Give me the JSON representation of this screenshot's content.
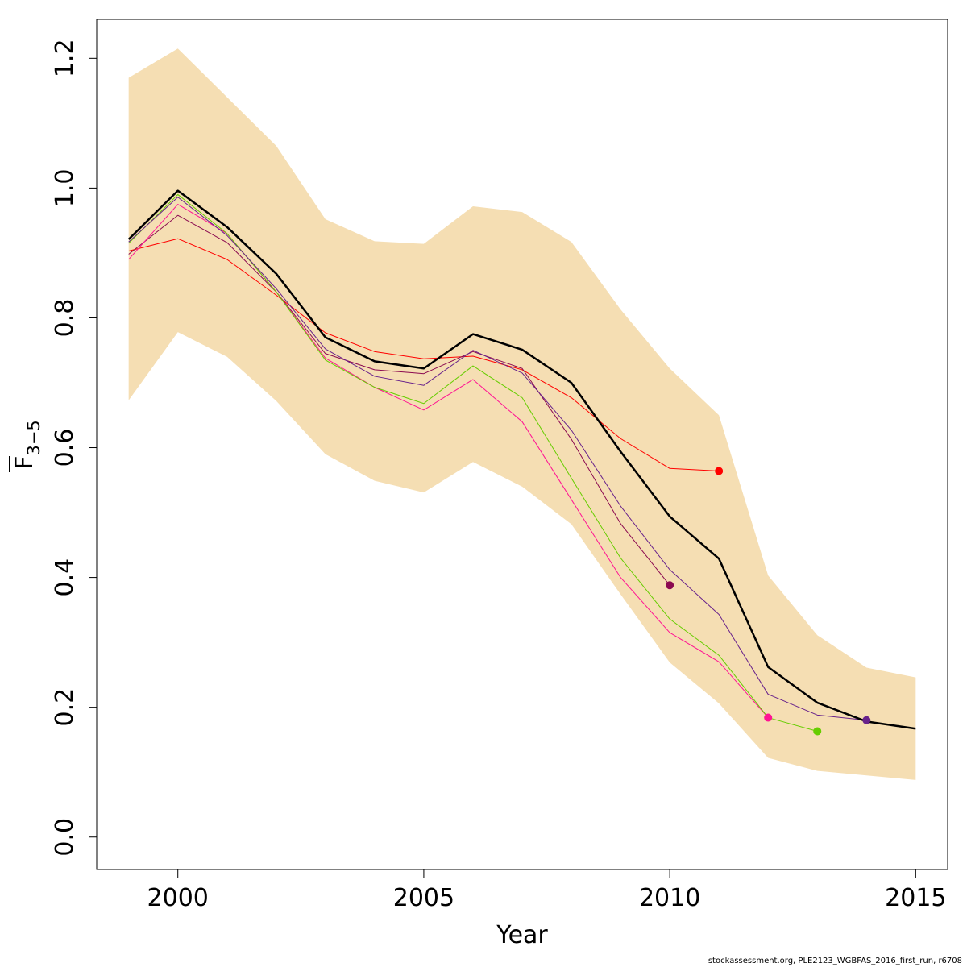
{
  "chart_data": {
    "type": "line",
    "xlabel": "Year",
    "ylabel_main": "F",
    "ylabel_sub": "3−5",
    "xlim": [
      1998.35,
      2015.65
    ],
    "ylim": [
      -0.05,
      1.26
    ],
    "x_ticks": [
      2000,
      2005,
      2010,
      2015
    ],
    "y_ticks": [
      0.0,
      0.2,
      0.4,
      0.6,
      0.8,
      1.0,
      1.2
    ],
    "x_tick_labels": [
      "2000",
      "2005",
      "2010",
      "2015"
    ],
    "y_tick_labels": [
      "0.0",
      "0.2",
      "0.4",
      "0.6",
      "0.8",
      "1.0",
      "1.2"
    ],
    "confidence_band": {
      "color": "#f5deb3",
      "x": [
        1999,
        2000,
        2001,
        2002,
        2003,
        2004,
        2005,
        2006,
        2007,
        2008,
        2009,
        2010,
        2011,
        2012,
        2013,
        2014,
        2015
      ],
      "upper": [
        1.17,
        1.215,
        1.14,
        1.065,
        0.952,
        0.918,
        0.914,
        0.972,
        0.963,
        0.917,
        0.813,
        0.722,
        0.65,
        0.403,
        0.311,
        0.261,
        0.246
      ],
      "lower": [
        0.673,
        0.778,
        0.74,
        0.672,
        0.59,
        0.549,
        0.531,
        0.578,
        0.54,
        0.482,
        0.374,
        0.269,
        0.206,
        0.122,
        0.102,
        0.095,
        0.088
      ]
    },
    "series": [
      {
        "color": "#ff0000",
        "width": 1,
        "x": [
          1999,
          2000,
          2001,
          2002,
          2003,
          2004,
          2005,
          2006,
          2007,
          2008,
          2009,
          2010,
          2011
        ],
        "values": [
          0.903,
          0.922,
          0.89,
          0.835,
          0.777,
          0.748,
          0.737,
          0.741,
          0.72,
          0.677,
          0.614,
          0.568,
          0.564
        ]
      },
      {
        "color": "#8b0a50",
        "width": 1,
        "x": [
          1999,
          2000,
          2001,
          2002,
          2003,
          2004,
          2005,
          2006,
          2007,
          2008,
          2009,
          2010
        ],
        "values": [
          0.898,
          0.958,
          0.916,
          0.84,
          0.745,
          0.72,
          0.714,
          0.748,
          0.722,
          0.613,
          0.483,
          0.388
        ]
      },
      {
        "color": "#ff1493",
        "width": 1,
        "x": [
          1999,
          2000,
          2001,
          2002,
          2003,
          2004,
          2005,
          2006,
          2007,
          2008,
          2009,
          2010,
          2011,
          2012
        ],
        "values": [
          0.89,
          0.975,
          0.93,
          0.84,
          0.738,
          0.693,
          0.658,
          0.705,
          0.64,
          0.52,
          0.4,
          0.315,
          0.27,
          0.184
        ]
      },
      {
        "color": "#66cd00",
        "width": 1,
        "x": [
          1999,
          2000,
          2001,
          2002,
          2003,
          2004,
          2005,
          2006,
          2007,
          2008,
          2009,
          2010,
          2011,
          2012,
          2013
        ],
        "values": [
          0.915,
          0.99,
          0.93,
          0.84,
          0.735,
          0.693,
          0.668,
          0.726,
          0.677,
          0.553,
          0.43,
          0.336,
          0.28,
          0.184,
          0.163
        ]
      },
      {
        "color": "#68228b",
        "width": 1,
        "x": [
          1999,
          2000,
          2001,
          2002,
          2003,
          2004,
          2005,
          2006,
          2007,
          2008,
          2009,
          2010,
          2011,
          2012,
          2013,
          2014
        ],
        "values": [
          0.917,
          0.986,
          0.927,
          0.845,
          0.752,
          0.71,
          0.696,
          0.75,
          0.715,
          0.627,
          0.51,
          0.412,
          0.343,
          0.22,
          0.188,
          0.18
        ]
      },
      {
        "color": "#000000",
        "width": 2.5,
        "x": [
          1999,
          2000,
          2001,
          2002,
          2003,
          2004,
          2005,
          2006,
          2007,
          2008,
          2009,
          2010,
          2011,
          2012,
          2013,
          2014,
          2015
        ],
        "values": [
          0.921,
          0.996,
          0.94,
          0.868,
          0.77,
          0.733,
          0.722,
          0.775,
          0.751,
          0.7,
          0.594,
          0.494,
          0.429,
          0.262,
          0.207,
          0.178,
          0.167
        ]
      }
    ],
    "endpoints": [
      {
        "x": 2011,
        "y": 0.564,
        "color": "#ff0000"
      },
      {
        "x": 2010,
        "y": 0.388,
        "color": "#8b0a50"
      },
      {
        "x": 2012,
        "y": 0.184,
        "color": "#ff1493"
      },
      {
        "x": 2013,
        "y": 0.163,
        "color": "#66cd00"
      },
      {
        "x": 2014,
        "y": 0.18,
        "color": "#68228b"
      }
    ]
  },
  "footer": "stockassessment.org, PLE2123_WGBFAS_2016_first_run, r6708"
}
